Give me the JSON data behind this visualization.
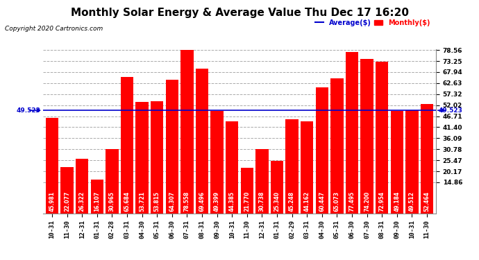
{
  "title": "Monthly Solar Energy & Average Value Thu Dec 17 16:20",
  "copyright": "Copyright 2020 Cartronics.com",
  "categories": [
    "10-31",
    "11-30",
    "12-31",
    "01-31",
    "02-28",
    "03-31",
    "04-30",
    "05-31",
    "06-30",
    "07-31",
    "08-31",
    "09-30",
    "10-31",
    "11-30",
    "12-31",
    "01-31",
    "02-29",
    "03-31",
    "04-30",
    "05-31",
    "06-30",
    "07-30",
    "08-31",
    "09-30",
    "10-31",
    "11-30"
  ],
  "values": [
    45.981,
    22.077,
    26.322,
    16.107,
    30.965,
    65.684,
    53.721,
    53.815,
    64.307,
    78.558,
    69.496,
    49.399,
    44.385,
    21.77,
    30.738,
    25.34,
    45.248,
    44.162,
    60.447,
    65.073,
    77.495,
    74.2,
    72.954,
    49.184,
    49.512,
    52.464
  ],
  "average": 49.523,
  "bar_color": "#ff0000",
  "average_color": "#0000cd",
  "legend_average_label": "Average($)",
  "legend_monthly_label": "Monthly($)",
  "legend_average_color": "#0000cd",
  "legend_monthly_color": "#ff0000",
  "yticks": [
    14.86,
    20.17,
    25.47,
    30.78,
    36.09,
    41.4,
    46.71,
    52.02,
    57.32,
    62.63,
    67.94,
    73.25,
    78.56
  ],
  "background_color": "#ffffff",
  "grid_color": "#aaaaaa",
  "title_fontsize": 11,
  "tick_fontsize": 6.5,
  "bar_label_fontsize": 5.5,
  "avg_label": "49.523",
  "figsize": [
    6.9,
    3.75
  ],
  "dpi": 100
}
